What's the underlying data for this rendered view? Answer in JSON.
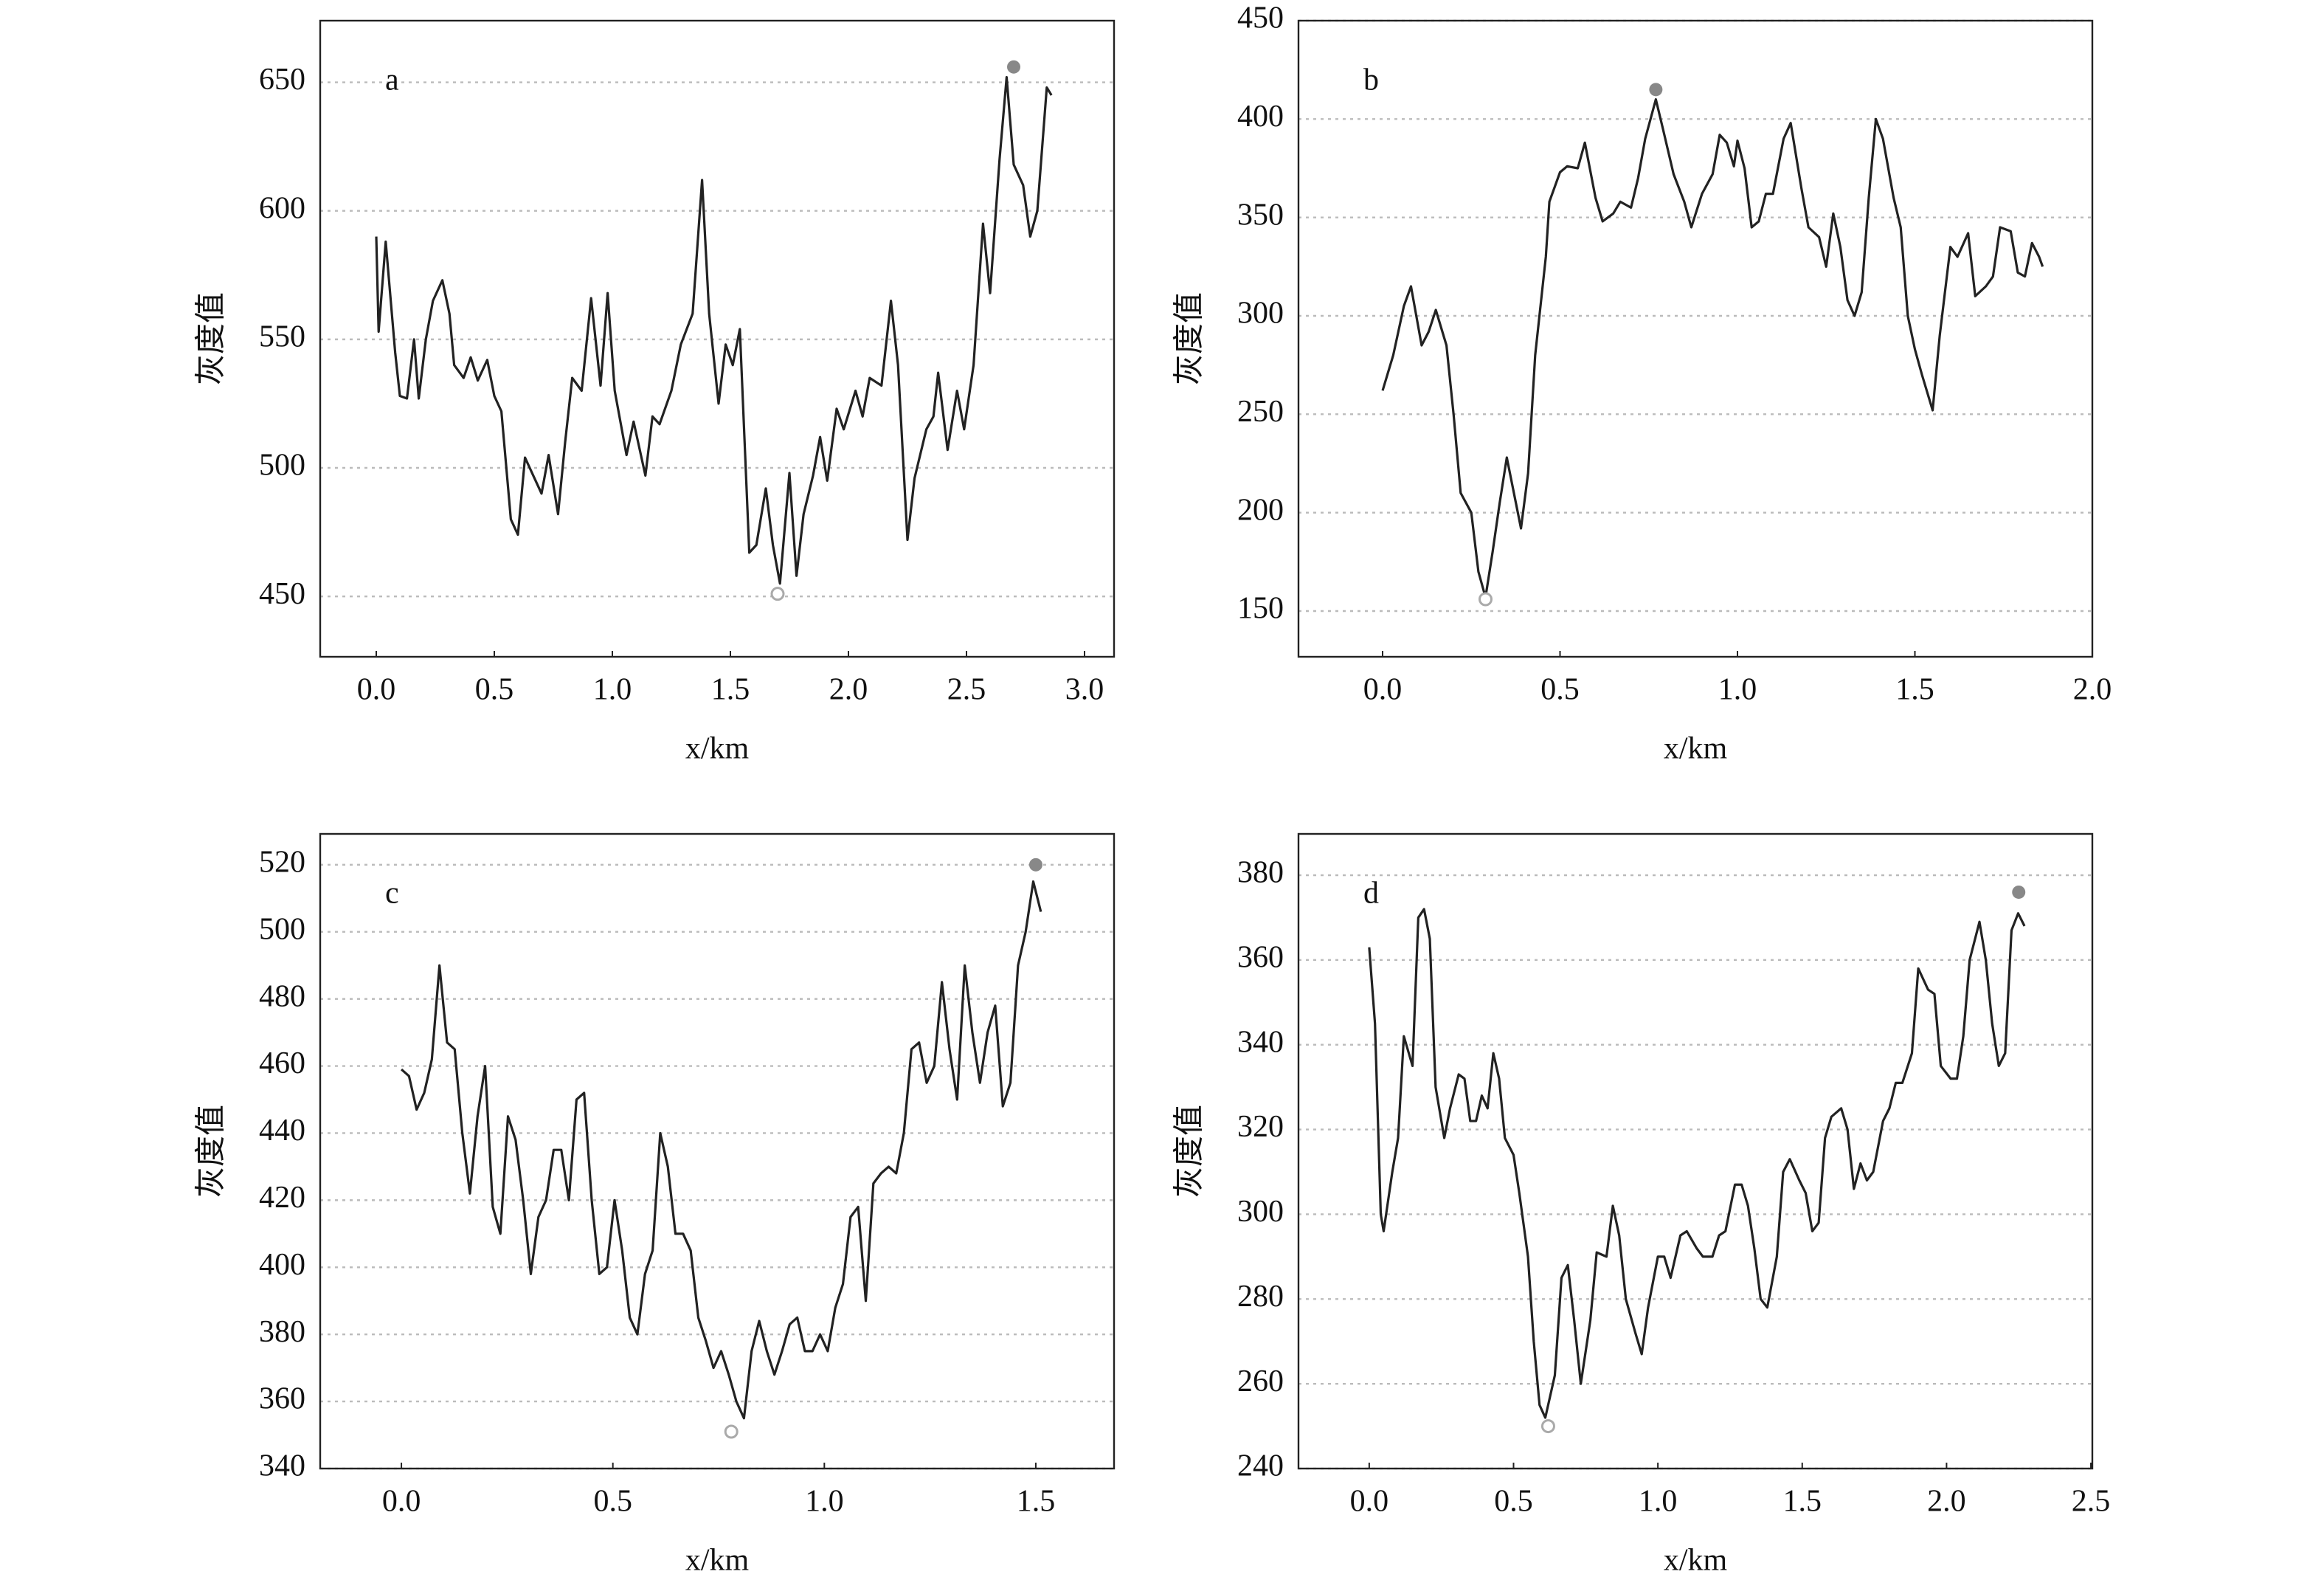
{
  "chart_data": [
    {
      "type": "line",
      "label": "a",
      "xlabel": "x/km",
      "ylabel": "灰度值",
      "color": "#222222",
      "grid": true,
      "xlim": [
        -0.2375,
        3.125
      ],
      "ylim": [
        426.5,
        674
      ],
      "xticks": [
        {
          "value": 0,
          "label": "0.0"
        },
        0.5,
        {
          "value": 1,
          "label": "1.0"
        },
        1.5,
        {
          "value": 2,
          "label": "2.0"
        },
        2.5,
        {
          "value": 3,
          "label": "3.0"
        }
      ],
      "yticks": [
        450,
        500,
        550,
        600,
        650
      ],
      "x": [
        0,
        0.01,
        0.04,
        0.08,
        0.1,
        0.13,
        0.16,
        0.18,
        0.21,
        0.24,
        0.28,
        0.31,
        0.33,
        0.37,
        0.4,
        0.43,
        0.47,
        0.5,
        0.53,
        0.57,
        0.6,
        0.63,
        0.67,
        0.7,
        0.73,
        0.77,
        0.8,
        0.83,
        0.87,
        0.91,
        0.95,
        0.98,
        1.01,
        1.06,
        1.09,
        1.14,
        1.17,
        1.2,
        1.25,
        1.29,
        1.34,
        1.38,
        1.41,
        1.45,
        1.48,
        1.51,
        1.54,
        1.58,
        1.61,
        1.65,
        1.68,
        1.71,
        1.75,
        1.78,
        1.81,
        1.85,
        1.88,
        1.91,
        1.95,
        1.98,
        2.03,
        2.06,
        2.09,
        2.14,
        2.18,
        2.21,
        2.25,
        2.28,
        2.33,
        2.36,
        2.38,
        2.42,
        2.46,
        2.49,
        2.53,
        2.57,
        2.6,
        2.64,
        2.67,
        2.7,
        2.74,
        2.77,
        2.8,
        2.84,
        2.86
      ],
      "values": [
        590,
        553,
        588,
        545,
        528,
        527,
        550,
        527,
        550,
        565,
        573,
        560,
        540,
        535,
        543,
        534,
        542,
        528,
        522,
        480,
        474,
        504,
        496,
        490,
        505,
        482,
        510,
        535,
        530,
        566,
        532,
        568,
        530,
        505,
        518,
        497,
        520,
        517,
        530,
        548,
        560,
        612,
        560,
        525,
        548,
        540,
        554,
        467,
        470,
        492,
        470,
        455,
        498,
        458,
        482,
        497,
        512,
        495,
        523,
        515,
        530,
        520,
        535,
        532,
        565,
        540,
        472,
        496,
        515,
        520,
        537,
        507,
        530,
        515,
        540,
        595,
        568,
        620,
        652,
        618,
        610,
        590,
        600,
        648,
        645
      ],
      "highlights": {
        "max": {
          "x": 2.7,
          "y": 656,
          "color": "#888888"
        },
        "min": {
          "x": 1.7,
          "y": 451,
          "color": "#aaaaaa"
        }
      }
    },
    {
      "type": "line",
      "label": "b",
      "xlabel": "x/km",
      "ylabel": "灰度值",
      "color": "#222222",
      "grid": true,
      "xlim": [
        -0.237,
        2.0
      ],
      "ylim": [
        126.75,
        450
      ],
      "xticks": [
        {
          "value": 0,
          "label": "0.0"
        },
        0.5,
        {
          "value": 1,
          "label": "1.0"
        },
        1.5,
        {
          "value": 2,
          "label": "2.0"
        }
      ],
      "yticks": [
        150,
        200,
        250,
        300,
        350,
        400,
        450
      ],
      "x": [
        0.0,
        0.03,
        0.06,
        0.08,
        0.11,
        0.13,
        0.15,
        0.18,
        0.2,
        0.22,
        0.25,
        0.27,
        0.29,
        0.31,
        0.33,
        0.35,
        0.37,
        0.39,
        0.41,
        0.43,
        0.46,
        0.47,
        0.5,
        0.52,
        0.55,
        0.57,
        0.6,
        0.62,
        0.65,
        0.67,
        0.7,
        0.72,
        0.74,
        0.77,
        0.79,
        0.82,
        0.85,
        0.87,
        0.9,
        0.93,
        0.95,
        0.97,
        0.99,
        1.0,
        1.02,
        1.04,
        1.06,
        1.08,
        1.1,
        1.13,
        1.15,
        1.18,
        1.2,
        1.23,
        1.25,
        1.27,
        1.29,
        1.31,
        1.33,
        1.35,
        1.37,
        1.39,
        1.41,
        1.44,
        1.46,
        1.48,
        1.5,
        1.52,
        1.55,
        1.57,
        1.6,
        1.62,
        1.65,
        1.67,
        1.7,
        1.72,
        1.74,
        1.77,
        1.79,
        1.81,
        1.83,
        1.85,
        1.86
      ],
      "values": [
        262,
        280,
        305,
        315,
        285,
        292,
        303,
        285,
        250,
        210,
        200,
        170,
        157,
        180,
        205,
        228,
        210,
        192,
        220,
        280,
        330,
        358,
        373,
        376,
        375,
        388,
        360,
        348,
        352,
        358,
        355,
        370,
        390,
        410,
        395,
        372,
        358,
        345,
        362,
        372,
        392,
        388,
        376,
        389,
        375,
        345,
        348,
        362,
        362,
        390,
        398,
        365,
        345,
        340,
        325,
        352,
        335,
        308,
        300,
        312,
        360,
        400,
        390,
        360,
        345,
        300,
        283,
        270,
        252,
        290,
        335,
        330,
        342,
        310,
        315,
        320,
        345,
        343,
        322,
        320,
        337,
        330,
        325
      ],
      "highlights": {
        "max": {
          "x": 0.77,
          "y": 415,
          "color": "#888888"
        },
        "min": {
          "x": 0.29,
          "y": 156,
          "color": "#aaaaaa"
        }
      }
    },
    {
      "type": "line",
      "label": "c",
      "xlabel": "x/km",
      "ylabel": "灰度值",
      "color": "#222222",
      "grid": true,
      "xlim": [
        -0.192,
        1.685
      ],
      "ylim": [
        340,
        529.2
      ],
      "xticks": [
        {
          "value": 0,
          "label": "0.0"
        },
        0.5,
        {
          "value": 1,
          "label": "1.0"
        },
        1.5
      ],
      "yticks": [
        340,
        360,
        380,
        400,
        420,
        440,
        460,
        480,
        500,
        520
      ],
      "x": [
        0,
        0.018,
        0.036,
        0.054,
        0.072,
        0.09,
        0.108,
        0.126,
        0.144,
        0.162,
        0.18,
        0.198,
        0.216,
        0.234,
        0.252,
        0.27,
        0.288,
        0.306,
        0.324,
        0.342,
        0.36,
        0.378,
        0.396,
        0.414,
        0.432,
        0.45,
        0.468,
        0.486,
        0.504,
        0.522,
        0.54,
        0.558,
        0.576,
        0.594,
        0.612,
        0.63,
        0.648,
        0.666,
        0.684,
        0.702,
        0.72,
        0.738,
        0.756,
        0.774,
        0.792,
        0.81,
        0.828,
        0.846,
        0.864,
        0.882,
        0.9,
        0.918,
        0.936,
        0.954,
        0.972,
        0.99,
        1.008,
        1.026,
        1.044,
        1.062,
        1.08,
        1.098,
        1.116,
        1.134,
        1.152,
        1.17,
        1.188,
        1.206,
        1.224,
        1.242,
        1.26,
        1.278,
        1.296,
        1.314,
        1.332,
        1.35,
        1.368,
        1.386,
        1.404,
        1.422,
        1.44,
        1.458,
        1.476,
        1.494,
        1.512
      ],
      "values": [
        459,
        457,
        447,
        452,
        462,
        490,
        467,
        465,
        440,
        422,
        445,
        460,
        418,
        410,
        445,
        438,
        420,
        398,
        415,
        420,
        435,
        435,
        420,
        450,
        452,
        420,
        398,
        400,
        420,
        405,
        385,
        380,
        398,
        405,
        440,
        430,
        410,
        410,
        405,
        385,
        378,
        370,
        375,
        368,
        360,
        355,
        375,
        384,
        375,
        368,
        375,
        383,
        385,
        375,
        375,
        380,
        375,
        388,
        395,
        415,
        418,
        390,
        425,
        428,
        430,
        428,
        440,
        465,
        467,
        455,
        460,
        485,
        465,
        450,
        490,
        470,
        455,
        470,
        478,
        448,
        455,
        490,
        500,
        515,
        506
      ],
      "highlights": {
        "max": {
          "x": 1.5,
          "y": 520,
          "color": "#888888"
        },
        "min": {
          "x": 0.78,
          "y": 351,
          "color": "#aaaaaa"
        }
      }
    },
    {
      "type": "line",
      "label": "d",
      "xlabel": "x/km",
      "ylabel": "灰度值",
      "color": "#222222",
      "grid": true,
      "xlim": [
        -0.245,
        2.505
      ],
      "ylim": [
        240,
        389.75
      ],
      "xticks": [
        {
          "value": 0,
          "label": "0.0"
        },
        0.5,
        {
          "value": 1,
          "label": "1.0"
        },
        1.5,
        {
          "value": 2,
          "label": "2.0"
        },
        2.5
      ],
      "yticks": [
        240,
        260,
        280,
        300,
        320,
        340,
        360,
        380
      ],
      "x": [
        0.0,
        0.02,
        0.04,
        0.05,
        0.08,
        0.1,
        0.12,
        0.15,
        0.17,
        0.19,
        0.21,
        0.23,
        0.26,
        0.28,
        0.31,
        0.33,
        0.35,
        0.37,
        0.39,
        0.41,
        0.43,
        0.45,
        0.47,
        0.5,
        0.52,
        0.55,
        0.57,
        0.59,
        0.61,
        0.643,
        0.666,
        0.688,
        0.71,
        0.733,
        0.766,
        0.788,
        0.822,
        0.844,
        0.866,
        0.889,
        0.922,
        0.944,
        0.966,
        1.0,
        1.022,
        1.044,
        1.078,
        1.1,
        1.134,
        1.156,
        1.189,
        1.212,
        1.234,
        1.267,
        1.29,
        1.312,
        1.334,
        1.356,
        1.379,
        1.412,
        1.434,
        1.457,
        1.49,
        1.512,
        1.535,
        1.557,
        1.579,
        1.601,
        1.635,
        1.657,
        1.679,
        1.702,
        1.724,
        1.746,
        1.78,
        1.802,
        1.824,
        1.847,
        1.88,
        1.902,
        1.936,
        1.958,
        1.98,
        2.014,
        2.036,
        2.058,
        2.08,
        2.114,
        2.136,
        2.158,
        2.181,
        2.203,
        2.225,
        2.248,
        2.27
      ],
      "values": [
        363,
        345,
        300,
        296,
        310,
        318,
        342,
        335,
        370,
        372,
        365,
        330,
        318,
        325,
        333,
        332,
        322,
        322,
        328,
        325,
        338,
        332,
        318,
        314,
        305,
        290,
        270,
        255,
        252,
        262,
        285,
        288,
        275,
        260,
        275,
        291,
        290,
        302,
        295,
        280,
        272,
        267,
        278,
        290,
        290,
        285,
        295,
        296,
        292,
        290,
        290,
        295,
        296,
        307,
        307,
        302,
        292,
        280,
        278,
        290,
        310,
        313,
        308,
        305,
        296,
        298,
        318,
        323,
        325,
        320,
        306,
        312,
        308,
        310,
        322,
        325,
        331,
        331,
        338,
        358,
        353,
        352,
        335,
        332,
        332,
        342,
        360,
        369,
        360,
        345,
        335,
        338,
        367,
        371,
        368
      ],
      "highlights": {
        "max": {
          "x": 2.25,
          "y": 376,
          "color": "#888888"
        },
        "min": {
          "x": 0.62,
          "y": 250,
          "color": "#aaaaaa"
        }
      }
    }
  ]
}
